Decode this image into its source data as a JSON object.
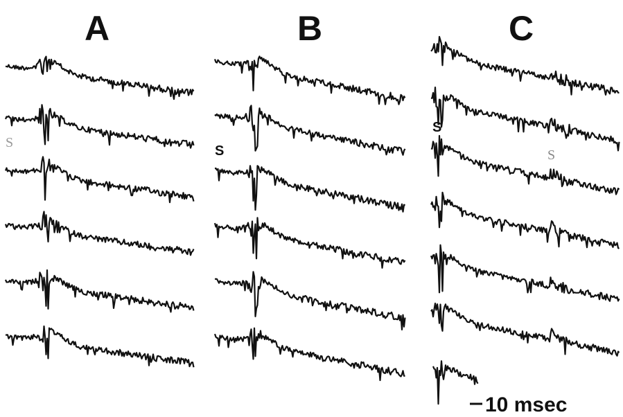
{
  "panels": [
    {
      "label": "A"
    },
    {
      "label": "B"
    },
    {
      "label": "C"
    }
  ],
  "stimulus_labels": [
    "S",
    "S",
    "S",
    "S"
  ],
  "scale_bar_label": "10 msec"
}
